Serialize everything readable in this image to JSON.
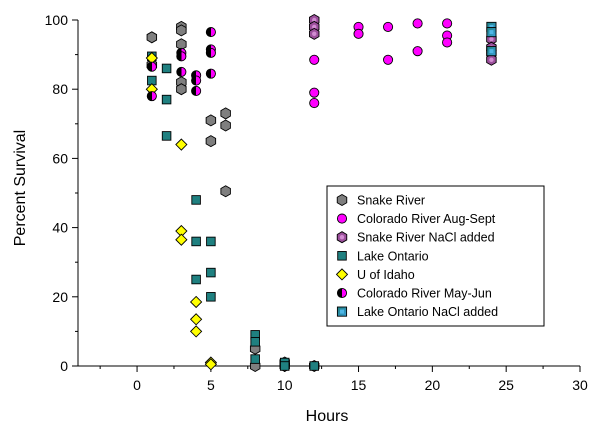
{
  "chart_data": {
    "type": "scatter",
    "title": "",
    "xlabel": "Hours",
    "ylabel": "Percent Survival",
    "xlim": [
      -4,
      30
    ],
    "ylim": [
      0,
      100
    ],
    "xticks": [
      "0",
      "5",
      "10",
      "15",
      "20",
      "25",
      "30"
    ],
    "yticks": [
      "0",
      "20",
      "40",
      "60",
      "80",
      "100"
    ],
    "grid": false,
    "legend_position": "inside lower right",
    "series": [
      {
        "name": "Snake River",
        "marker": "hexagon",
        "color": "#7f7f7f",
        "points": [
          [
            1,
            95
          ],
          [
            1,
            87
          ],
          [
            3,
            98
          ],
          [
            3,
            97
          ],
          [
            3,
            93
          ],
          [
            3,
            82
          ],
          [
            3,
            80
          ],
          [
            5,
            71
          ],
          [
            5,
            65
          ],
          [
            6,
            73
          ],
          [
            6,
            69.5
          ],
          [
            6,
            50.5
          ],
          [
            8,
            5
          ],
          [
            8,
            0
          ],
          [
            10,
            1
          ],
          [
            10,
            0
          ],
          [
            12,
            0
          ]
        ]
      },
      {
        "name": "Colorado River Aug-Sept",
        "marker": "circle",
        "color": "#ff00ff",
        "points": [
          [
            12,
            88.5
          ],
          [
            12,
            79
          ],
          [
            12,
            76
          ],
          [
            15,
            98
          ],
          [
            15,
            96
          ],
          [
            17,
            98
          ],
          [
            17,
            88.5
          ],
          [
            19,
            99
          ],
          [
            19,
            91
          ],
          [
            21,
            99
          ],
          [
            21,
            95.5
          ],
          [
            21,
            93.5
          ]
        ]
      },
      {
        "name": "Snake River NaCl added",
        "marker": "hexagon-dot",
        "color": "#9b4f9b",
        "points": [
          [
            12,
            100
          ],
          [
            12,
            98
          ],
          [
            12,
            96
          ],
          [
            24,
            94.5
          ],
          [
            24,
            92
          ],
          [
            24,
            90.5
          ],
          [
            24,
            88.5
          ]
        ]
      },
      {
        "name": "Lake Ontario",
        "marker": "square",
        "color": "#1f8080",
        "points": [
          [
            1,
            89.5
          ],
          [
            1,
            82.5
          ],
          [
            2,
            86
          ],
          [
            2,
            77
          ],
          [
            2,
            66.5
          ],
          [
            4,
            48
          ],
          [
            4,
            36
          ],
          [
            4,
            25
          ],
          [
            5,
            36
          ],
          [
            5,
            27
          ],
          [
            5,
            20
          ],
          [
            8,
            9
          ],
          [
            8,
            7
          ],
          [
            8,
            2
          ],
          [
            10,
            1
          ],
          [
            10,
            0
          ],
          [
            12,
            0
          ]
        ]
      },
      {
        "name": "U of Idaho",
        "marker": "diamond",
        "color": "#ffff00",
        "points": [
          [
            1,
            89
          ],
          [
            1,
            80
          ],
          [
            3,
            64
          ],
          [
            3,
            39
          ],
          [
            3,
            36.5
          ],
          [
            4,
            18.5
          ],
          [
            4,
            13.5
          ],
          [
            4,
            10
          ],
          [
            5,
            1
          ],
          [
            5,
            0.5
          ]
        ]
      },
      {
        "name": "Colorado River May-Jun",
        "marker": "circle-half",
        "color": "#ff00ff",
        "points": [
          [
            1,
            86.5
          ],
          [
            1,
            78
          ],
          [
            3,
            90.5
          ],
          [
            3,
            89.5
          ],
          [
            3,
            85
          ],
          [
            4,
            84
          ],
          [
            4,
            82.5
          ],
          [
            4,
            79.5
          ],
          [
            5,
            96.5
          ],
          [
            5,
            91.5
          ],
          [
            5,
            90.5
          ],
          [
            5,
            84.5
          ]
        ]
      },
      {
        "name": "Lake Ontario NaCl added",
        "marker": "square-dot",
        "color": "#1f8080",
        "points": [
          [
            24,
            98
          ],
          [
            24,
            96.5
          ],
          [
            24,
            91
          ]
        ]
      }
    ]
  }
}
